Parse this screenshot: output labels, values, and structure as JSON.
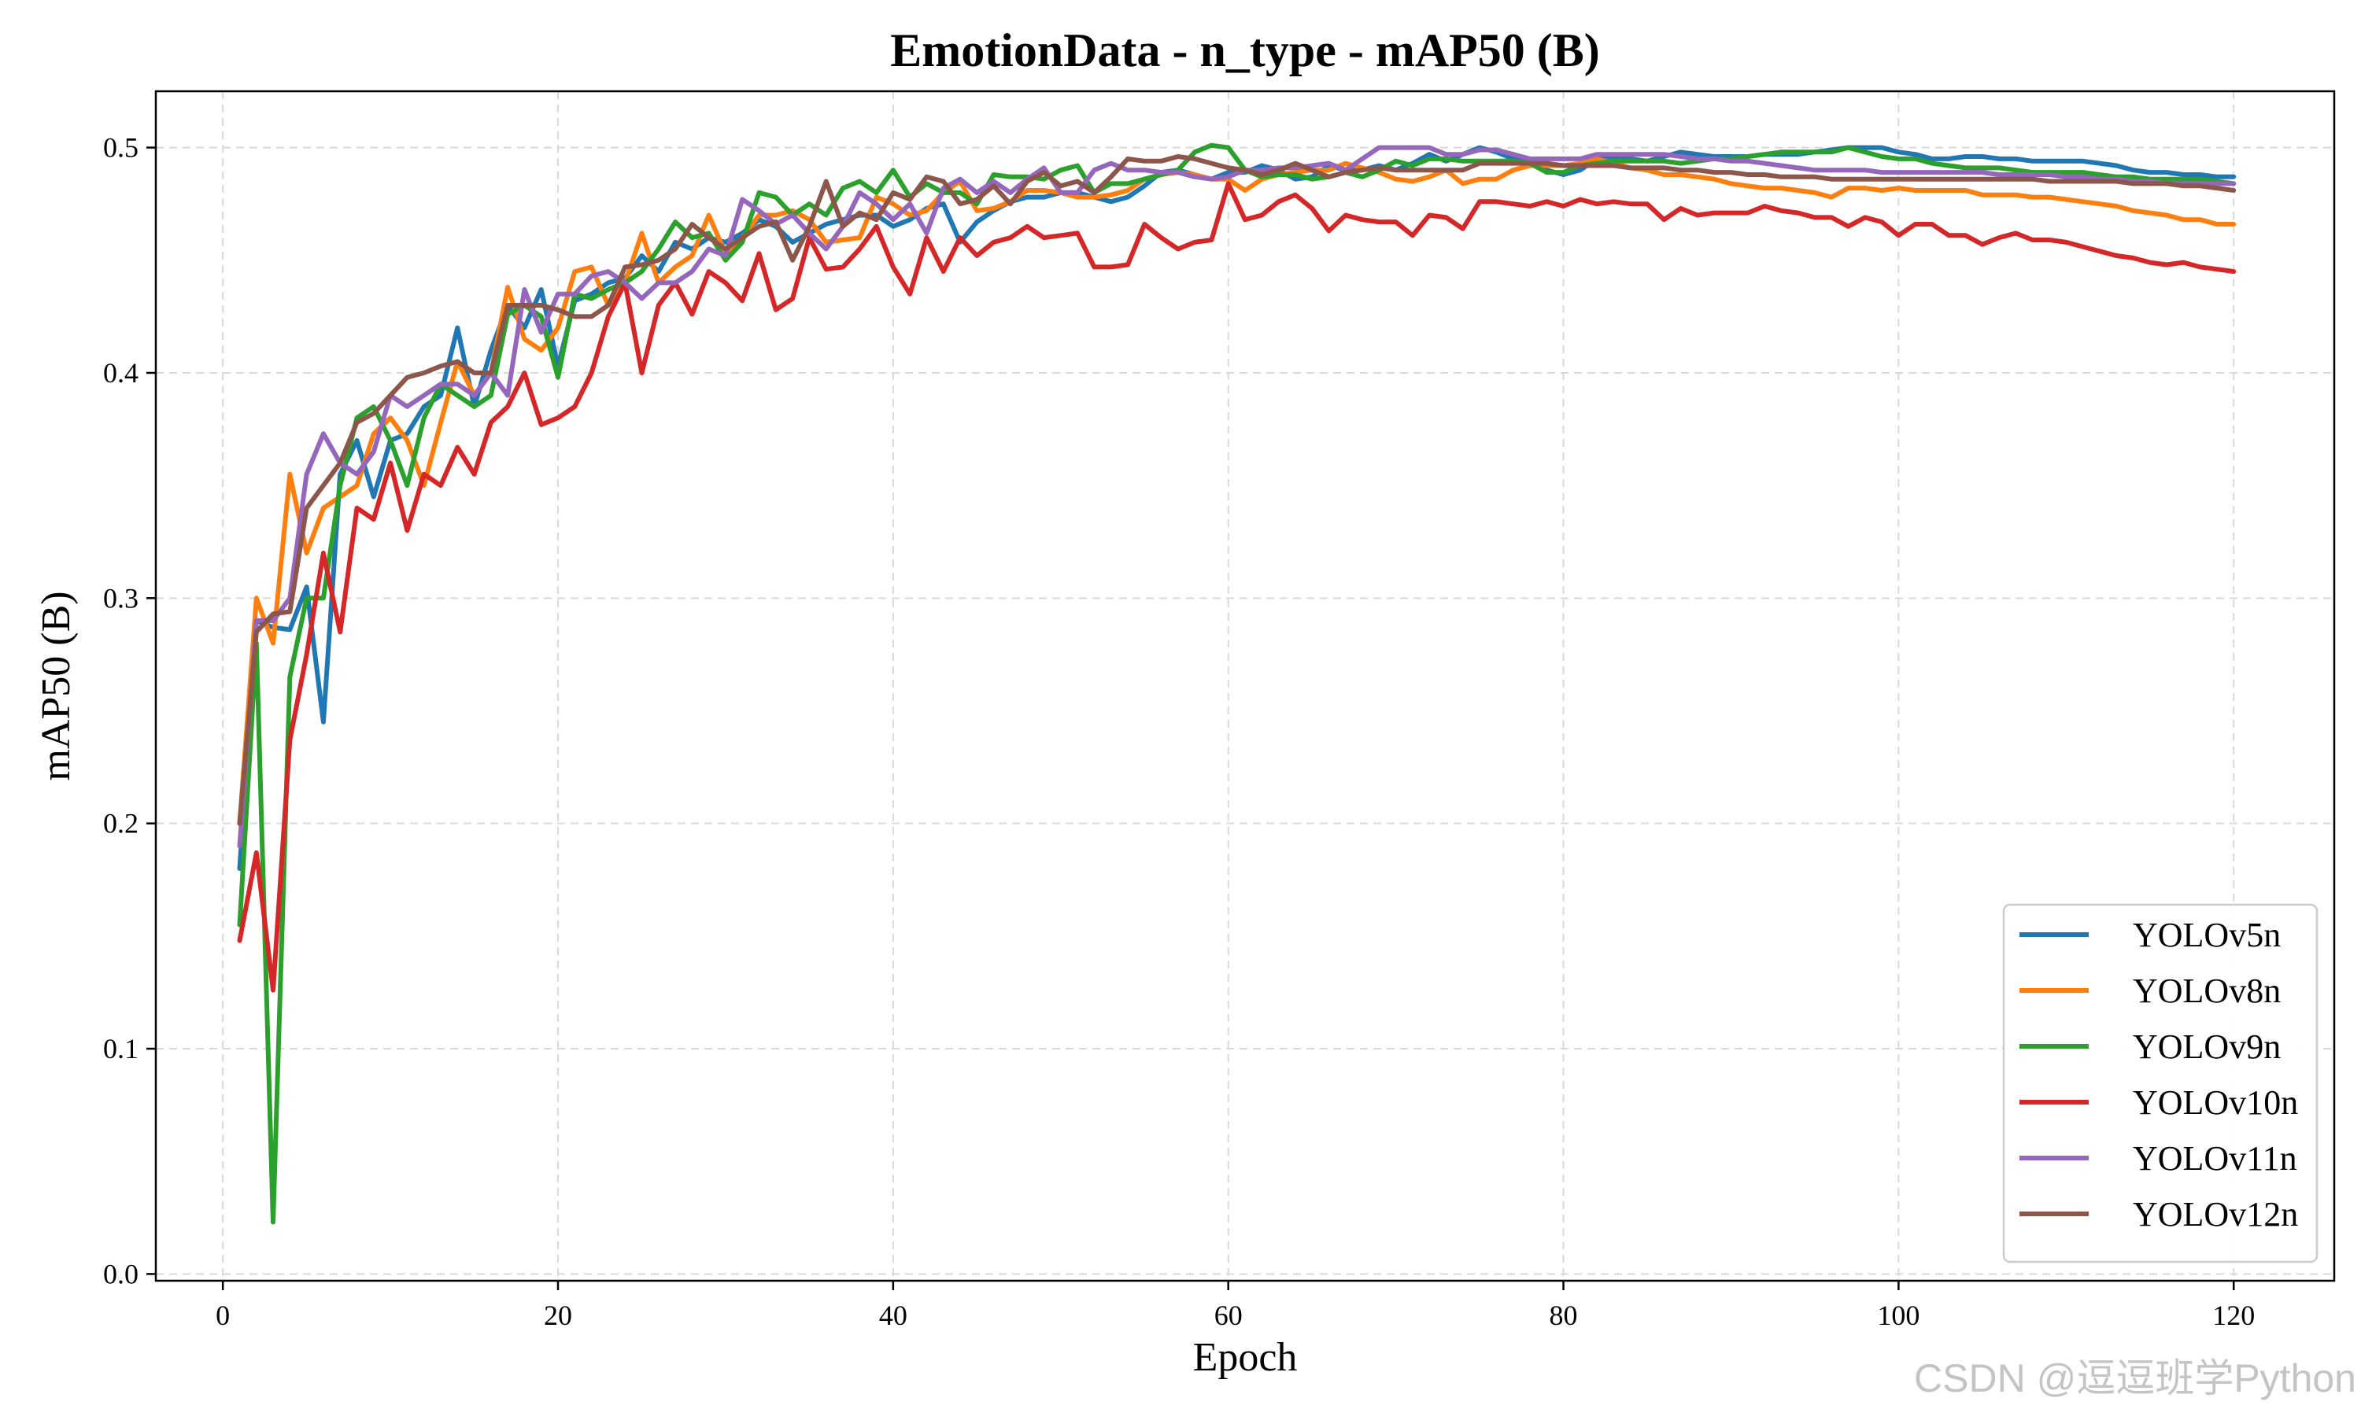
{
  "chart_data": {
    "type": "line",
    "title": "EmotionData - n_type - mAP50 (B)",
    "xlabel": "Epoch",
    "ylabel": "mAP50 (B)",
    "xlim": [
      -4,
      126
    ],
    "ylim": [
      -0.003,
      0.525
    ],
    "x_ticks": [
      0,
      20,
      40,
      60,
      80,
      100,
      120
    ],
    "y_ticks": [
      0.0,
      0.1,
      0.2,
      0.3,
      0.4,
      0.5
    ],
    "grid": true,
    "legend_position": "lower-right",
    "x": [
      1,
      2,
      3,
      4,
      5,
      6,
      7,
      8,
      9,
      10,
      11,
      12,
      13,
      14,
      15,
      16,
      17,
      18,
      19,
      20,
      21,
      22,
      23,
      24,
      25,
      26,
      27,
      28,
      29,
      30,
      31,
      32,
      33,
      34,
      35,
      36,
      37,
      38,
      39,
      40,
      41,
      42,
      43,
      44,
      45,
      46,
      47,
      48,
      49,
      50,
      51,
      52,
      53,
      54,
      55,
      56,
      57,
      58,
      59,
      60,
      61,
      62,
      63,
      64,
      65,
      66,
      67,
      68,
      69,
      70,
      71,
      72,
      73,
      74,
      75,
      76,
      77,
      78,
      79,
      80,
      81,
      82,
      83,
      84,
      85,
      86,
      87,
      88,
      89,
      90,
      91,
      92,
      93,
      94,
      95,
      96,
      97,
      98,
      99,
      100,
      101,
      102,
      103,
      104,
      105,
      106,
      107,
      108,
      109,
      110,
      111,
      112,
      113,
      114,
      115,
      116,
      117,
      118,
      119,
      120
    ],
    "series": [
      {
        "name": "YOLOv5n",
        "color": "#1f77b4",
        "values": [
          0.18,
          0.29,
          0.287,
          0.286,
          0.305,
          0.245,
          0.355,
          0.37,
          0.345,
          0.37,
          0.373,
          0.385,
          0.39,
          0.42,
          0.385,
          0.41,
          0.43,
          0.42,
          0.437,
          0.403,
          0.432,
          0.435,
          0.44,
          0.442,
          0.452,
          0.445,
          0.458,
          0.455,
          0.46,
          0.458,
          0.462,
          0.468,
          0.465,
          0.458,
          0.462,
          0.466,
          0.468,
          0.47,
          0.47,
          0.465,
          0.468,
          0.473,
          0.475,
          0.458,
          0.467,
          0.472,
          0.476,
          0.478,
          0.478,
          0.48,
          0.48,
          0.478,
          0.476,
          0.478,
          0.483,
          0.489,
          0.49,
          0.488,
          0.486,
          0.489,
          0.489,
          0.492,
          0.49,
          0.486,
          0.487,
          0.492,
          0.49,
          0.49,
          0.492,
          0.49,
          0.493,
          0.497,
          0.494,
          0.497,
          0.5,
          0.498,
          0.495,
          0.494,
          0.49,
          0.488,
          0.49,
          0.495,
          0.495,
          0.495,
          0.494,
          0.496,
          0.498,
          0.497,
          0.496,
          0.496,
          0.496,
          0.497,
          0.497,
          0.497,
          0.498,
          0.499,
          0.5,
          0.5,
          0.5,
          0.498,
          0.497,
          0.495,
          0.495,
          0.496,
          0.496,
          0.495,
          0.495,
          0.494,
          0.494,
          0.494,
          0.494,
          0.493,
          0.492,
          0.49,
          0.489,
          0.489,
          0.488,
          0.488,
          0.487,
          0.487
        ]
      },
      {
        "name": "YOLOv8n",
        "color": "#ff7f0e",
        "values": [
          0.2,
          0.3,
          0.28,
          0.355,
          0.32,
          0.34,
          0.345,
          0.35,
          0.373,
          0.38,
          0.37,
          0.35,
          0.378,
          0.405,
          0.39,
          0.4,
          0.438,
          0.415,
          0.41,
          0.42,
          0.445,
          0.447,
          0.43,
          0.44,
          0.462,
          0.44,
          0.447,
          0.452,
          0.47,
          0.453,
          0.46,
          0.47,
          0.47,
          0.472,
          0.468,
          0.458,
          0.459,
          0.46,
          0.478,
          0.475,
          0.47,
          0.472,
          0.48,
          0.485,
          0.472,
          0.473,
          0.476,
          0.481,
          0.481,
          0.48,
          0.478,
          0.478,
          0.479,
          0.481,
          0.486,
          0.488,
          0.489,
          0.488,
          0.486,
          0.486,
          0.481,
          0.486,
          0.488,
          0.489,
          0.49,
          0.49,
          0.493,
          0.491,
          0.489,
          0.486,
          0.485,
          0.487,
          0.49,
          0.484,
          0.486,
          0.486,
          0.49,
          0.492,
          0.492,
          0.492,
          0.493,
          0.495,
          0.493,
          0.491,
          0.49,
          0.488,
          0.488,
          0.487,
          0.486,
          0.484,
          0.483,
          0.482,
          0.482,
          0.481,
          0.48,
          0.478,
          0.482,
          0.482,
          0.481,
          0.482,
          0.481,
          0.481,
          0.481,
          0.481,
          0.479,
          0.479,
          0.479,
          0.478,
          0.478,
          0.477,
          0.476,
          0.475,
          0.474,
          0.472,
          0.471,
          0.47,
          0.468,
          0.468,
          0.466,
          0.466
        ]
      },
      {
        "name": "YOLOv9n",
        "color": "#2ca02c",
        "values": [
          0.155,
          0.28,
          0.023,
          0.265,
          0.3,
          0.3,
          0.35,
          0.38,
          0.385,
          0.37,
          0.35,
          0.38,
          0.395,
          0.39,
          0.385,
          0.39,
          0.426,
          0.43,
          0.425,
          0.398,
          0.435,
          0.433,
          0.437,
          0.44,
          0.445,
          0.455,
          0.467,
          0.46,
          0.462,
          0.45,
          0.458,
          0.48,
          0.478,
          0.47,
          0.475,
          0.47,
          0.482,
          0.485,
          0.48,
          0.49,
          0.478,
          0.484,
          0.48,
          0.48,
          0.475,
          0.488,
          0.487,
          0.487,
          0.486,
          0.49,
          0.492,
          0.48,
          0.484,
          0.484,
          0.486,
          0.488,
          0.49,
          0.498,
          0.501,
          0.5,
          0.49,
          0.487,
          0.488,
          0.488,
          0.486,
          0.487,
          0.489,
          0.487,
          0.49,
          0.494,
          0.492,
          0.495,
          0.495,
          0.494,
          0.494,
          0.494,
          0.494,
          0.493,
          0.489,
          0.489,
          0.492,
          0.493,
          0.494,
          0.494,
          0.494,
          0.494,
          0.493,
          0.494,
          0.495,
          0.495,
          0.496,
          0.497,
          0.498,
          0.498,
          0.498,
          0.498,
          0.5,
          0.498,
          0.496,
          0.495,
          0.495,
          0.493,
          0.492,
          0.491,
          0.491,
          0.491,
          0.49,
          0.489,
          0.489,
          0.489,
          0.489,
          0.488,
          0.487,
          0.487,
          0.486,
          0.486,
          0.486,
          0.486,
          0.485,
          0.484
        ]
      },
      {
        "name": "YOLOv10n",
        "color": "#d62728",
        "values": [
          0.148,
          0.187,
          0.126,
          0.237,
          0.275,
          0.32,
          0.285,
          0.34,
          0.335,
          0.36,
          0.33,
          0.355,
          0.35,
          0.367,
          0.355,
          0.378,
          0.385,
          0.4,
          0.377,
          0.38,
          0.385,
          0.4,
          0.425,
          0.44,
          0.4,
          0.43,
          0.44,
          0.426,
          0.445,
          0.44,
          0.432,
          0.453,
          0.428,
          0.433,
          0.46,
          0.446,
          0.447,
          0.455,
          0.465,
          0.447,
          0.435,
          0.46,
          0.445,
          0.46,
          0.452,
          0.458,
          0.46,
          0.465,
          0.46,
          0.461,
          0.462,
          0.447,
          0.447,
          0.448,
          0.466,
          0.46,
          0.455,
          0.458,
          0.459,
          0.484,
          0.468,
          0.47,
          0.476,
          0.479,
          0.473,
          0.463,
          0.47,
          0.468,
          0.467,
          0.467,
          0.461,
          0.47,
          0.469,
          0.464,
          0.476,
          0.476,
          0.475,
          0.474,
          0.476,
          0.474,
          0.477,
          0.475,
          0.476,
          0.475,
          0.475,
          0.468,
          0.473,
          0.47,
          0.471,
          0.471,
          0.471,
          0.474,
          0.472,
          0.471,
          0.469,
          0.469,
          0.465,
          0.469,
          0.467,
          0.461,
          0.466,
          0.466,
          0.461,
          0.461,
          0.457,
          0.46,
          0.462,
          0.459,
          0.459,
          0.458,
          0.456,
          0.454,
          0.452,
          0.451,
          0.449,
          0.448,
          0.449,
          0.447,
          0.446,
          0.445
        ]
      },
      {
        "name": "YOLOv11n",
        "color": "#9467bd",
        "values": [
          0.19,
          0.29,
          0.29,
          0.3,
          0.355,
          0.373,
          0.36,
          0.355,
          0.365,
          0.39,
          0.385,
          0.39,
          0.395,
          0.395,
          0.39,
          0.4,
          0.39,
          0.437,
          0.418,
          0.435,
          0.435,
          0.443,
          0.445,
          0.44,
          0.433,
          0.44,
          0.44,
          0.445,
          0.455,
          0.452,
          0.477,
          0.472,
          0.466,
          0.47,
          0.462,
          0.455,
          0.465,
          0.48,
          0.475,
          0.468,
          0.475,
          0.462,
          0.482,
          0.486,
          0.48,
          0.485,
          0.48,
          0.486,
          0.491,
          0.48,
          0.48,
          0.49,
          0.493,
          0.49,
          0.49,
          0.489,
          0.489,
          0.487,
          0.486,
          0.487,
          0.49,
          0.49,
          0.491,
          0.491,
          0.492,
          0.493,
          0.49,
          0.495,
          0.5,
          0.5,
          0.5,
          0.5,
          0.497,
          0.497,
          0.499,
          0.499,
          0.497,
          0.495,
          0.495,
          0.495,
          0.495,
          0.497,
          0.497,
          0.497,
          0.497,
          0.497,
          0.496,
          0.495,
          0.495,
          0.494,
          0.494,
          0.493,
          0.492,
          0.491,
          0.49,
          0.49,
          0.49,
          0.49,
          0.489,
          0.489,
          0.489,
          0.489,
          0.489,
          0.489,
          0.489,
          0.488,
          0.488,
          0.488,
          0.488,
          0.487,
          0.487,
          0.486,
          0.486,
          0.485,
          0.485,
          0.484,
          0.484,
          0.484,
          0.484,
          0.484
        ]
      },
      {
        "name": "YOLOv12n",
        "color": "#8c564b",
        "values": [
          0.2,
          0.285,
          0.293,
          0.294,
          0.34,
          0.35,
          0.36,
          0.378,
          0.382,
          0.39,
          0.398,
          0.4,
          0.403,
          0.405,
          0.4,
          0.4,
          0.43,
          0.43,
          0.43,
          0.428,
          0.425,
          0.425,
          0.43,
          0.447,
          0.448,
          0.45,
          0.455,
          0.466,
          0.46,
          0.455,
          0.46,
          0.465,
          0.467,
          0.45,
          0.465,
          0.485,
          0.465,
          0.471,
          0.468,
          0.48,
          0.477,
          0.487,
          0.485,
          0.475,
          0.477,
          0.483,
          0.475,
          0.485,
          0.489,
          0.483,
          0.485,
          0.48,
          0.487,
          0.495,
          0.494,
          0.494,
          0.496,
          0.495,
          0.493,
          0.491,
          0.49,
          0.488,
          0.49,
          0.493,
          0.49,
          0.487,
          0.489,
          0.49,
          0.491,
          0.49,
          0.49,
          0.49,
          0.49,
          0.49,
          0.493,
          0.493,
          0.493,
          0.493,
          0.493,
          0.492,
          0.492,
          0.492,
          0.492,
          0.491,
          0.491,
          0.491,
          0.49,
          0.49,
          0.489,
          0.489,
          0.488,
          0.488,
          0.487,
          0.487,
          0.487,
          0.486,
          0.486,
          0.486,
          0.486,
          0.486,
          0.486,
          0.486,
          0.486,
          0.486,
          0.486,
          0.486,
          0.486,
          0.486,
          0.485,
          0.485,
          0.485,
          0.485,
          0.485,
          0.484,
          0.484,
          0.484,
          0.483,
          0.483,
          0.482,
          0.481
        ]
      }
    ]
  },
  "watermark": "CSDN @逗逗班学Python"
}
